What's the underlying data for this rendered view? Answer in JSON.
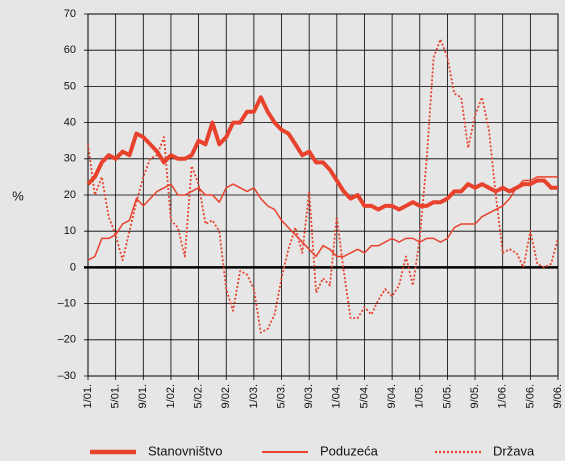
{
  "chart_data": {
    "type": "line",
    "categories": [
      "1/01.",
      null,
      null,
      null,
      "5/01.",
      null,
      null,
      null,
      "9/01.",
      null,
      null,
      null,
      "1/02.",
      null,
      null,
      null,
      "5/02.",
      null,
      null,
      null,
      "9/02.",
      null,
      null,
      null,
      "1/03.",
      null,
      null,
      null,
      "5/03.",
      null,
      null,
      null,
      "9/03.",
      null,
      null,
      null,
      "1/04.",
      null,
      null,
      null,
      "5/04.",
      null,
      null,
      null,
      "9/04.",
      null,
      null,
      null,
      "1/05.",
      null,
      null,
      null,
      "5/05.",
      null,
      null,
      null,
      "9/05.",
      null,
      null,
      null,
      "1/06.",
      null,
      null,
      null,
      "5/06.",
      null,
      null,
      null,
      "9/06."
    ],
    "series": [
      {
        "name": "Stanovništvo",
        "color": "#e8412c",
        "width": 4,
        "style": "solid",
        "values": [
          23,
          25,
          29,
          31,
          30,
          32,
          31,
          37,
          36,
          34,
          32,
          29,
          31,
          30,
          30,
          31,
          35,
          34,
          40,
          34,
          36,
          40,
          40,
          43,
          43,
          47,
          43,
          40,
          38,
          37,
          34,
          31,
          32,
          29,
          29,
          27,
          24,
          21,
          19,
          20,
          17,
          17,
          16,
          17,
          17,
          16,
          17,
          18,
          17,
          17,
          18,
          18,
          19,
          21,
          21,
          23,
          22,
          23,
          22,
          21,
          22,
          21,
          22,
          23,
          23,
          24,
          24,
          22,
          22
        ]
      },
      {
        "name": "Poduzeća",
        "color": "#e8412c",
        "width": 1.5,
        "style": "solid",
        "values": [
          2,
          3,
          8,
          8,
          9,
          12,
          13,
          19,
          17,
          19,
          21,
          22,
          23,
          20,
          20,
          21,
          22,
          20,
          20,
          18,
          22,
          23,
          22,
          21,
          22,
          19,
          17,
          16,
          13,
          11,
          9,
          7,
          5,
          3,
          6,
          5,
          3,
          3,
          4,
          5,
          4,
          6,
          6,
          7,
          8,
          7,
          8,
          8,
          7,
          8,
          8,
          7,
          8,
          11,
          12,
          12,
          12,
          14,
          15,
          16,
          17,
          19,
          22,
          24,
          24,
          25,
          25,
          25,
          25
        ]
      },
      {
        "name": "Država",
        "color": "#e8412c",
        "width": 1.8,
        "style": "dotted",
        "values": [
          34,
          20,
          25,
          14,
          9,
          2,
          10,
          18,
          25,
          30,
          31,
          36,
          13,
          11,
          3,
          28,
          23,
          12,
          13,
          10,
          -6,
          -12,
          -1,
          -2,
          -6,
          -18,
          -17,
          -13,
          -3,
          5,
          11,
          4,
          21,
          -7,
          -3,
          -5,
          14,
          -1,
          -14,
          -14,
          -11,
          -13,
          -9,
          -6,
          -8,
          -5,
          3,
          -5,
          8,
          30,
          58,
          63,
          58,
          48,
          47,
          33,
          42,
          47,
          38,
          20,
          4,
          5,
          4,
          0,
          10,
          1,
          0,
          1,
          8
        ]
      }
    ],
    "y_label": "%",
    "ylim": [
      -30,
      70
    ],
    "yticks": [
      {
        "value": -30,
        "label": "–30"
      },
      {
        "value": -20,
        "label": "–20"
      },
      {
        "value": -10,
        "label": "–10"
      },
      0,
      10,
      20,
      30,
      40,
      50,
      60,
      70
    ],
    "grid": true,
    "legend": "bottom"
  }
}
